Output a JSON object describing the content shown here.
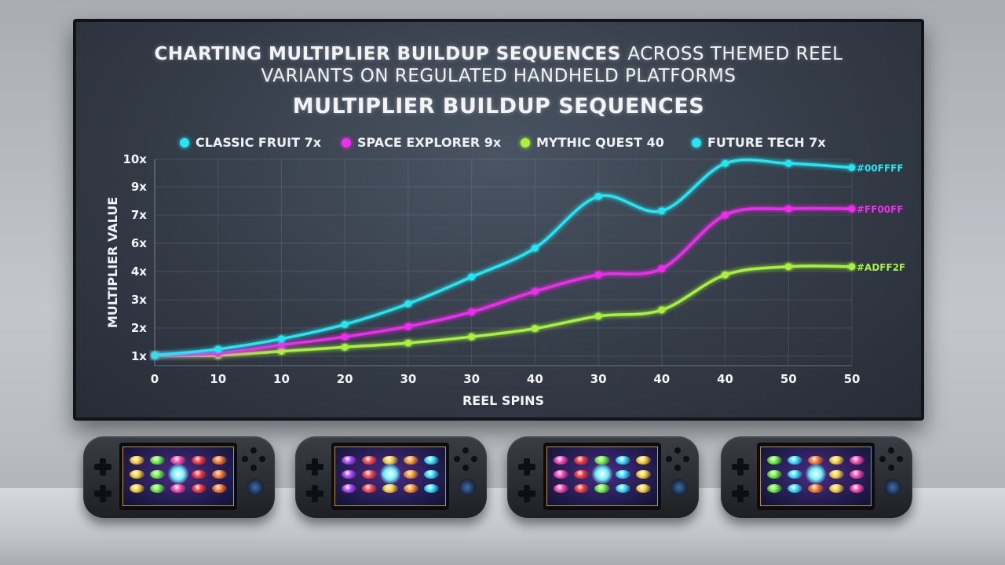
{
  "chart_data": {
    "type": "line",
    "title": "CHARTING MULTIPLIER BUILDUP SEQUENCES ACROSS THEMED REEL VARIANTS ON REGULATED HANDHELD PLATFORMS",
    "title_bold_part": "CHARTING MULTIPLIER BUILDUP SEQUENCES",
    "title_rest_line1": "ACROSS THEMED REEL",
    "title_line2": "VARIANTS ON REGULATED HANDHELD PLATFORMS",
    "subtitle": "MULTIPLIER BUILDUP SEQUENCES",
    "xlabel": "REEL SPINS",
    "ylabel": "MULTIPLIER VALUE",
    "x_tick_labels": [
      "0",
      "10",
      "10",
      "20",
      "30",
      "30",
      "40",
      "30",
      "40",
      "40",
      "50",
      "50"
    ],
    "y_tick_labels": [
      "10x",
      "9x",
      "7x",
      "6x",
      "4x",
      "3x",
      "2x",
      "1x"
    ],
    "grid": true,
    "legend_position": "top",
    "series": [
      {
        "name": "CLASSIC FRUIT 7x",
        "color": "#22e6f2",
        "end_label": "#00FFFF",
        "values": [
          0.5,
          0.8,
          1.3,
          2.0,
          3.0,
          4.3,
          5.7,
          8.2,
          7.5,
          9.8,
          9.8,
          9.6
        ]
      },
      {
        "name": "SPACE EXPLORER 9x",
        "color": "#f22cf0",
        "end_label": "#FF00FF",
        "values": [
          0.5,
          0.6,
          1.0,
          1.4,
          1.9,
          2.6,
          3.6,
          4.4,
          4.7,
          7.3,
          7.6,
          7.6
        ]
      },
      {
        "name": "MYTHIC QUEST 40",
        "color": "#a7f23a",
        "end_label": "#ADFF2F",
        "values": [
          0.5,
          0.5,
          0.7,
          0.9,
          1.1,
          1.4,
          1.8,
          2.4,
          2.7,
          4.4,
          4.8,
          4.8
        ]
      },
      {
        "name": "FUTURE TECH 7x",
        "color": "#22e6f2",
        "values": []
      }
    ]
  },
  "page": {
    "legend_suffix_future": "7x"
  },
  "consoles": [
    {
      "name": "handheld-1"
    },
    {
      "name": "handheld-2"
    },
    {
      "name": "handheld-3"
    },
    {
      "name": "handheld-4"
    }
  ]
}
